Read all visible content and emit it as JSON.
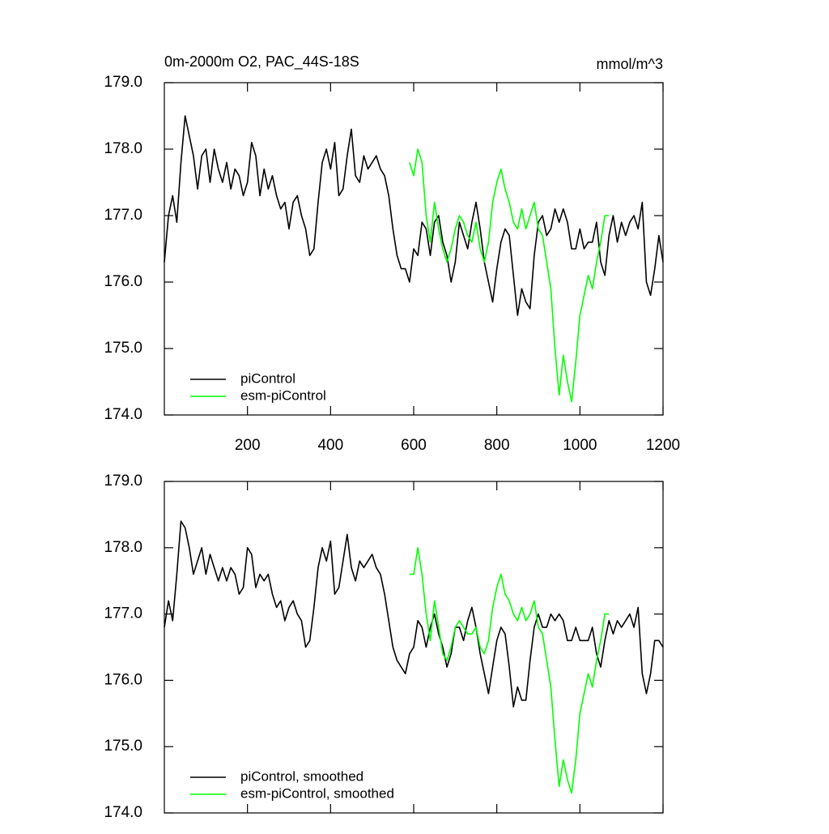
{
  "chart_data": [
    {
      "type": "line",
      "title": "0m-2000m O2, PAC_44S-18S",
      "units": "mmol/m^3",
      "xlim": [
        0,
        1200
      ],
      "xticks": [
        200,
        400,
        600,
        800,
        1000,
        1200
      ],
      "show_xtick_labels": true,
      "ylim": [
        174,
        179
      ],
      "yticks": [
        {
          "value": 174,
          "label": "174.0"
        },
        {
          "value": 175,
          "label": "175.0"
        },
        {
          "value": 176,
          "label": "176.0"
        },
        {
          "value": 177,
          "label": "177.0"
        },
        {
          "value": 178,
          "label": "178.0"
        },
        {
          "value": 179,
          "label": "179.0"
        }
      ],
      "legend": "lower left",
      "series": [
        {
          "name": "piControl",
          "color": "#000000",
          "x": [
            0,
            10,
            20,
            30,
            40,
            50,
            60,
            70,
            80,
            90,
            100,
            110,
            120,
            130,
            140,
            150,
            160,
            170,
            180,
            190,
            200,
            210,
            220,
            230,
            240,
            250,
            260,
            270,
            280,
            290,
            300,
            310,
            320,
            330,
            340,
            350,
            360,
            370,
            380,
            390,
            400,
            410,
            420,
            430,
            440,
            450,
            460,
            470,
            480,
            490,
            500,
            510,
            520,
            530,
            540,
            550,
            560,
            570,
            580,
            590,
            600,
            610,
            620,
            630,
            640,
            650,
            660,
            670,
            680,
            690,
            700,
            710,
            720,
            730,
            740,
            750,
            760,
            770,
            780,
            790,
            800,
            810,
            820,
            830,
            840,
            850,
            860,
            870,
            880,
            890,
            900,
            910,
            920,
            930,
            940,
            950,
            960,
            970,
            980,
            990,
            1000,
            1010,
            1020,
            1030,
            1040,
            1050,
            1060,
            1070,
            1080,
            1090,
            1100,
            1110,
            1120,
            1130,
            1140,
            1150,
            1160,
            1170,
            1180,
            1190,
            1200
          ],
          "values": [
            176.3,
            177.0,
            177.3,
            176.9,
            177.8,
            178.5,
            178.2,
            177.9,
            177.4,
            177.9,
            178.0,
            177.5,
            178.0,
            177.7,
            177.5,
            177.8,
            177.4,
            177.7,
            177.6,
            177.3,
            177.5,
            178.1,
            177.9,
            177.3,
            177.7,
            177.4,
            177.6,
            177.3,
            177.1,
            177.2,
            176.8,
            177.2,
            177.3,
            177.0,
            176.8,
            176.4,
            176.5,
            177.2,
            177.8,
            178.0,
            177.7,
            178.1,
            177.3,
            177.4,
            177.9,
            178.3,
            177.6,
            177.5,
            177.9,
            177.7,
            177.8,
            177.9,
            177.7,
            177.6,
            177.3,
            176.8,
            176.4,
            176.2,
            176.2,
            176.0,
            176.5,
            176.4,
            176.9,
            176.8,
            176.4,
            176.9,
            177.0,
            176.6,
            176.4,
            176.0,
            176.3,
            176.9,
            176.7,
            176.5,
            176.9,
            177.2,
            176.8,
            176.3,
            176.0,
            175.7,
            176.2,
            176.6,
            176.8,
            176.7,
            176.1,
            175.5,
            175.9,
            175.7,
            175.6,
            176.4,
            176.9,
            177.0,
            176.7,
            176.8,
            177.1,
            176.9,
            177.1,
            176.9,
            176.5,
            176.5,
            176.8,
            176.5,
            176.6,
            176.6,
            176.9,
            176.3,
            176.1,
            176.7,
            177.0,
            176.6,
            176.9,
            176.7,
            176.9,
            177.0,
            176.8,
            177.2,
            176.0,
            175.8,
            176.2,
            176.7,
            176.3
          ]
        },
        {
          "name": "esm-piControl",
          "color": "#00ff00",
          "x": [
            590,
            600,
            610,
            620,
            630,
            640,
            650,
            660,
            670,
            680,
            690,
            700,
            710,
            720,
            730,
            740,
            750,
            760,
            770,
            780,
            790,
            800,
            810,
            820,
            830,
            840,
            850,
            860,
            870,
            880,
            890,
            900,
            910,
            920,
            930,
            940,
            950,
            960,
            970,
            980,
            990,
            1000,
            1010,
            1020,
            1030,
            1040,
            1050,
            1060,
            1070
          ],
          "values": [
            177.8,
            177.6,
            178.0,
            177.8,
            177.0,
            176.6,
            177.2,
            176.8,
            176.5,
            176.3,
            176.5,
            176.8,
            177.0,
            176.9,
            176.7,
            176.6,
            176.9,
            176.5,
            176.3,
            176.6,
            177.2,
            177.5,
            177.7,
            177.4,
            177.2,
            176.9,
            176.8,
            177.1,
            176.8,
            177.0,
            177.2,
            176.8,
            176.7,
            176.3,
            175.9,
            175.0,
            174.3,
            174.9,
            174.5,
            174.2,
            174.8,
            175.5,
            175.8,
            176.1,
            175.9,
            176.3,
            176.6,
            177.0,
            177.0
          ]
        }
      ]
    },
    {
      "type": "line",
      "xlim": [
        0,
        1200
      ],
      "xticks": [
        200,
        400,
        600,
        800,
        1000,
        1200
      ],
      "show_xtick_labels": false,
      "ylim": [
        174,
        179
      ],
      "yticks": [
        {
          "value": 174,
          "label": "174.0"
        },
        {
          "value": 175,
          "label": "175.0"
        },
        {
          "value": 176,
          "label": "176.0"
        },
        {
          "value": 177,
          "label": "177.0"
        },
        {
          "value": 178,
          "label": "178.0"
        },
        {
          "value": 179,
          "label": "179.0"
        }
      ],
      "legend": "lower left",
      "series": [
        {
          "name": "piControl, smoothed",
          "color": "#000000",
          "x": [
            0,
            10,
            20,
            30,
            40,
            50,
            60,
            70,
            80,
            90,
            100,
            110,
            120,
            130,
            140,
            150,
            160,
            170,
            180,
            190,
            200,
            210,
            220,
            230,
            240,
            250,
            260,
            270,
            280,
            290,
            300,
            310,
            320,
            330,
            340,
            350,
            360,
            370,
            380,
            390,
            400,
            410,
            420,
            430,
            440,
            450,
            460,
            470,
            480,
            490,
            500,
            510,
            520,
            530,
            540,
            550,
            560,
            570,
            580,
            590,
            600,
            610,
            620,
            630,
            640,
            650,
            660,
            670,
            680,
            690,
            700,
            710,
            720,
            730,
            740,
            750,
            760,
            770,
            780,
            790,
            800,
            810,
            820,
            830,
            840,
            850,
            860,
            870,
            880,
            890,
            900,
            910,
            920,
            930,
            940,
            950,
            960,
            970,
            980,
            990,
            1000,
            1010,
            1020,
            1030,
            1040,
            1050,
            1060,
            1070,
            1080,
            1090,
            1100,
            1110,
            1120,
            1130,
            1140,
            1150,
            1160,
            1170,
            1180,
            1190,
            1200
          ],
          "values": [
            176.8,
            177.2,
            176.9,
            177.6,
            178.4,
            178.3,
            178.0,
            177.6,
            177.8,
            178.0,
            177.6,
            177.9,
            177.7,
            177.5,
            177.7,
            177.5,
            177.7,
            177.6,
            177.3,
            177.4,
            178.0,
            177.9,
            177.4,
            177.6,
            177.5,
            177.6,
            177.3,
            177.1,
            177.2,
            176.9,
            177.1,
            177.2,
            177.0,
            176.9,
            176.5,
            176.6,
            177.1,
            177.7,
            178.0,
            177.8,
            178.1,
            177.3,
            177.4,
            177.8,
            178.2,
            177.7,
            177.5,
            177.8,
            177.7,
            177.8,
            177.9,
            177.7,
            177.6,
            177.3,
            176.9,
            176.5,
            176.3,
            176.2,
            176.1,
            176.4,
            176.5,
            176.9,
            176.8,
            176.5,
            176.8,
            177.0,
            176.7,
            176.5,
            176.2,
            176.4,
            176.8,
            176.8,
            176.6,
            176.9,
            177.1,
            176.8,
            176.4,
            176.1,
            175.8,
            176.2,
            176.6,
            176.8,
            176.7,
            176.2,
            175.6,
            175.9,
            175.7,
            175.7,
            176.3,
            176.8,
            177.0,
            176.8,
            176.8,
            177.0,
            176.9,
            177.0,
            176.9,
            176.6,
            176.6,
            176.8,
            176.6,
            176.6,
            176.6,
            176.8,
            176.4,
            176.2,
            176.6,
            176.9,
            176.7,
            176.9,
            176.8,
            176.9,
            177.0,
            176.8,
            177.1,
            176.1,
            175.8,
            176.1,
            176.6,
            176.6,
            176.5
          ]
        },
        {
          "name": "esm-piControl, smoothed",
          "color": "#00ff00",
          "x": [
            590,
            600,
            610,
            620,
            630,
            640,
            650,
            660,
            670,
            680,
            690,
            700,
            710,
            720,
            730,
            740,
            750,
            760,
            770,
            780,
            790,
            800,
            810,
            820,
            830,
            840,
            850,
            860,
            870,
            880,
            890,
            900,
            910,
            920,
            930,
            940,
            950,
            960,
            970,
            980,
            990,
            1000,
            1010,
            1020,
            1030,
            1040,
            1050,
            1060,
            1070
          ],
          "values": [
            177.6,
            177.6,
            178.0,
            177.6,
            177.0,
            176.6,
            177.2,
            176.8,
            176.4,
            176.3,
            176.5,
            176.8,
            176.9,
            176.8,
            176.7,
            176.7,
            176.8,
            176.5,
            176.4,
            176.6,
            177.1,
            177.4,
            177.6,
            177.3,
            177.2,
            177.0,
            176.9,
            177.1,
            176.9,
            177.0,
            177.2,
            176.8,
            176.7,
            176.3,
            175.9,
            175.1,
            174.4,
            174.8,
            174.5,
            174.3,
            174.8,
            175.5,
            175.8,
            176.1,
            175.9,
            176.3,
            176.6,
            177.0,
            177.0
          ]
        }
      ]
    }
  ]
}
